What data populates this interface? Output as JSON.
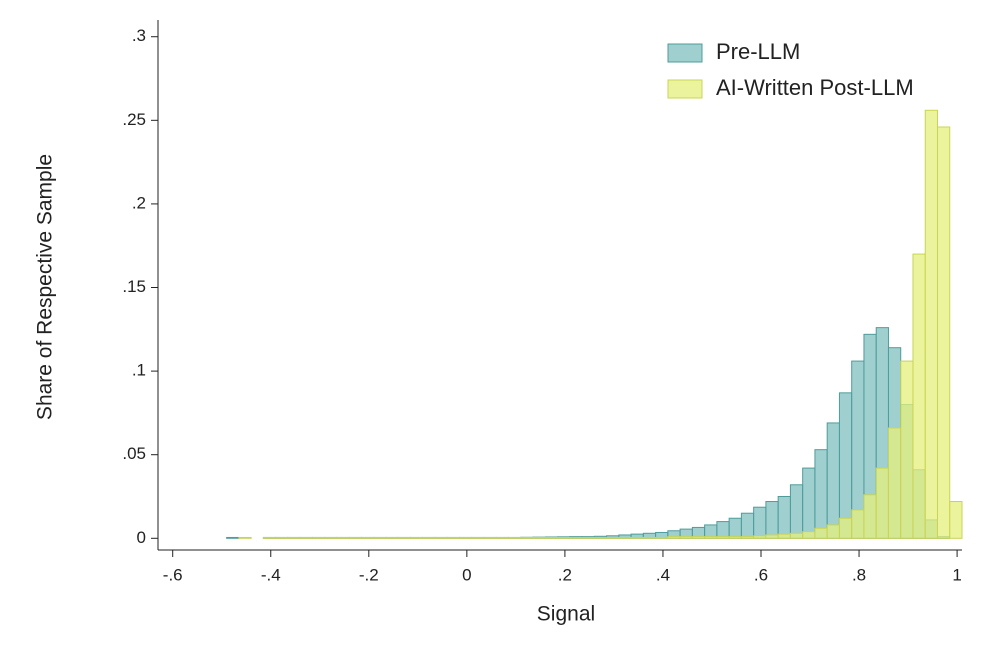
{
  "chart_data": {
    "type": "histogram",
    "x_label": "Signal",
    "y_label": "Share of Respective Sample",
    "bins": [
      -0.49,
      -0.465,
      -0.44,
      -0.415,
      -0.39,
      -0.365,
      -0.34,
      -0.315,
      -0.29,
      -0.265,
      -0.24,
      -0.215,
      -0.19,
      -0.165,
      -0.14,
      -0.115,
      -0.09,
      -0.065,
      -0.04,
      -0.015,
      0.01,
      0.035,
      0.06,
      0.085,
      0.11,
      0.135,
      0.16,
      0.185,
      0.21,
      0.235,
      0.26,
      0.285,
      0.31,
      0.335,
      0.36,
      0.385,
      0.41,
      0.435,
      0.46,
      0.485,
      0.51,
      0.535,
      0.56,
      0.585,
      0.61,
      0.635,
      0.66,
      0.685,
      0.71,
      0.735,
      0.76,
      0.785,
      0.81,
      0.835,
      0.86,
      0.885,
      0.91,
      0.935,
      0.96,
      0.985,
      1.01
    ],
    "series": [
      {
        "name": "Pre-LLM",
        "color": "#7fc0bf",
        "edge_color": "#4f9c9b",
        "values": [
          0.0005,
          0,
          0,
          0.0005,
          0.0005,
          0.0005,
          0.0005,
          0.0005,
          0.0005,
          0.0005,
          0.0005,
          0.0005,
          0.0005,
          0.0005,
          0.0005,
          0.0005,
          0.0005,
          0.0005,
          0.0005,
          0.0005,
          0.0005,
          0.0005,
          0.0005,
          0.0005,
          0.0006,
          0.0007,
          0.0008,
          0.0009,
          0.001,
          0.001,
          0.0012,
          0.0015,
          0.002,
          0.0025,
          0.003,
          0.0035,
          0.0045,
          0.0055,
          0.0065,
          0.008,
          0.01,
          0.012,
          0.015,
          0.0186,
          0.022,
          0.025,
          0.032,
          0.042,
          0.053,
          0.069,
          0.087,
          0.106,
          0.122,
          0.126,
          0.114,
          0.08,
          0.041,
          0.011,
          0.001,
          0
        ]
      },
      {
        "name": "AI-Written Post-LLM",
        "color": "#e6ef7c",
        "edge_color": "#c9d455",
        "values": [
          0,
          0.0005,
          0,
          0.0005,
          0.0005,
          0.0005,
          0.0005,
          0.0005,
          0.0005,
          0.0005,
          0.0005,
          0.0005,
          0.0005,
          0.0005,
          0.0005,
          0.0005,
          0.0005,
          0.0005,
          0.0005,
          0.0005,
          0.0005,
          0.0005,
          0.0005,
          0.0005,
          0.0005,
          0.0005,
          0.0005,
          0.0005,
          0.0005,
          0.0005,
          0.0005,
          0.0005,
          0.0005,
          0.0005,
          0.0005,
          0.0005,
          0.001,
          0.001,
          0.001,
          0.001,
          0.001,
          0.001,
          0.001,
          0.0015,
          0.002,
          0.0025,
          0.003,
          0.004,
          0.006,
          0.008,
          0.012,
          0.017,
          0.026,
          0.042,
          0.066,
          0.106,
          0.17,
          0.256,
          0.246,
          0.022
        ]
      }
    ],
    "xlim": [
      -0.63,
      1.01
    ],
    "ylim": [
      -0.007,
      0.31
    ],
    "xticks": [
      {
        "value": -0.6,
        "label": "-.6"
      },
      {
        "value": -0.4,
        "label": "-.4"
      },
      {
        "value": -0.2,
        "label": "-.2"
      },
      0,
      {
        "value": 0.2,
        "label": ".2"
      },
      {
        "value": 0.4,
        "label": ".4"
      },
      {
        "value": 0.6,
        "label": ".6"
      },
      {
        "value": 0.8,
        "label": ".8"
      },
      1
    ],
    "yticks": [
      0,
      {
        "value": 0.05,
        "label": ".05"
      },
      {
        "value": 0.1,
        "label": ".1"
      },
      {
        "value": 0.15,
        "label": ".15"
      },
      {
        "value": 0.2,
        "label": ".2"
      },
      {
        "value": 0.25,
        "label": ".25"
      },
      {
        "value": 0.3,
        "label": ".3"
      }
    ],
    "legend": "top-right"
  }
}
